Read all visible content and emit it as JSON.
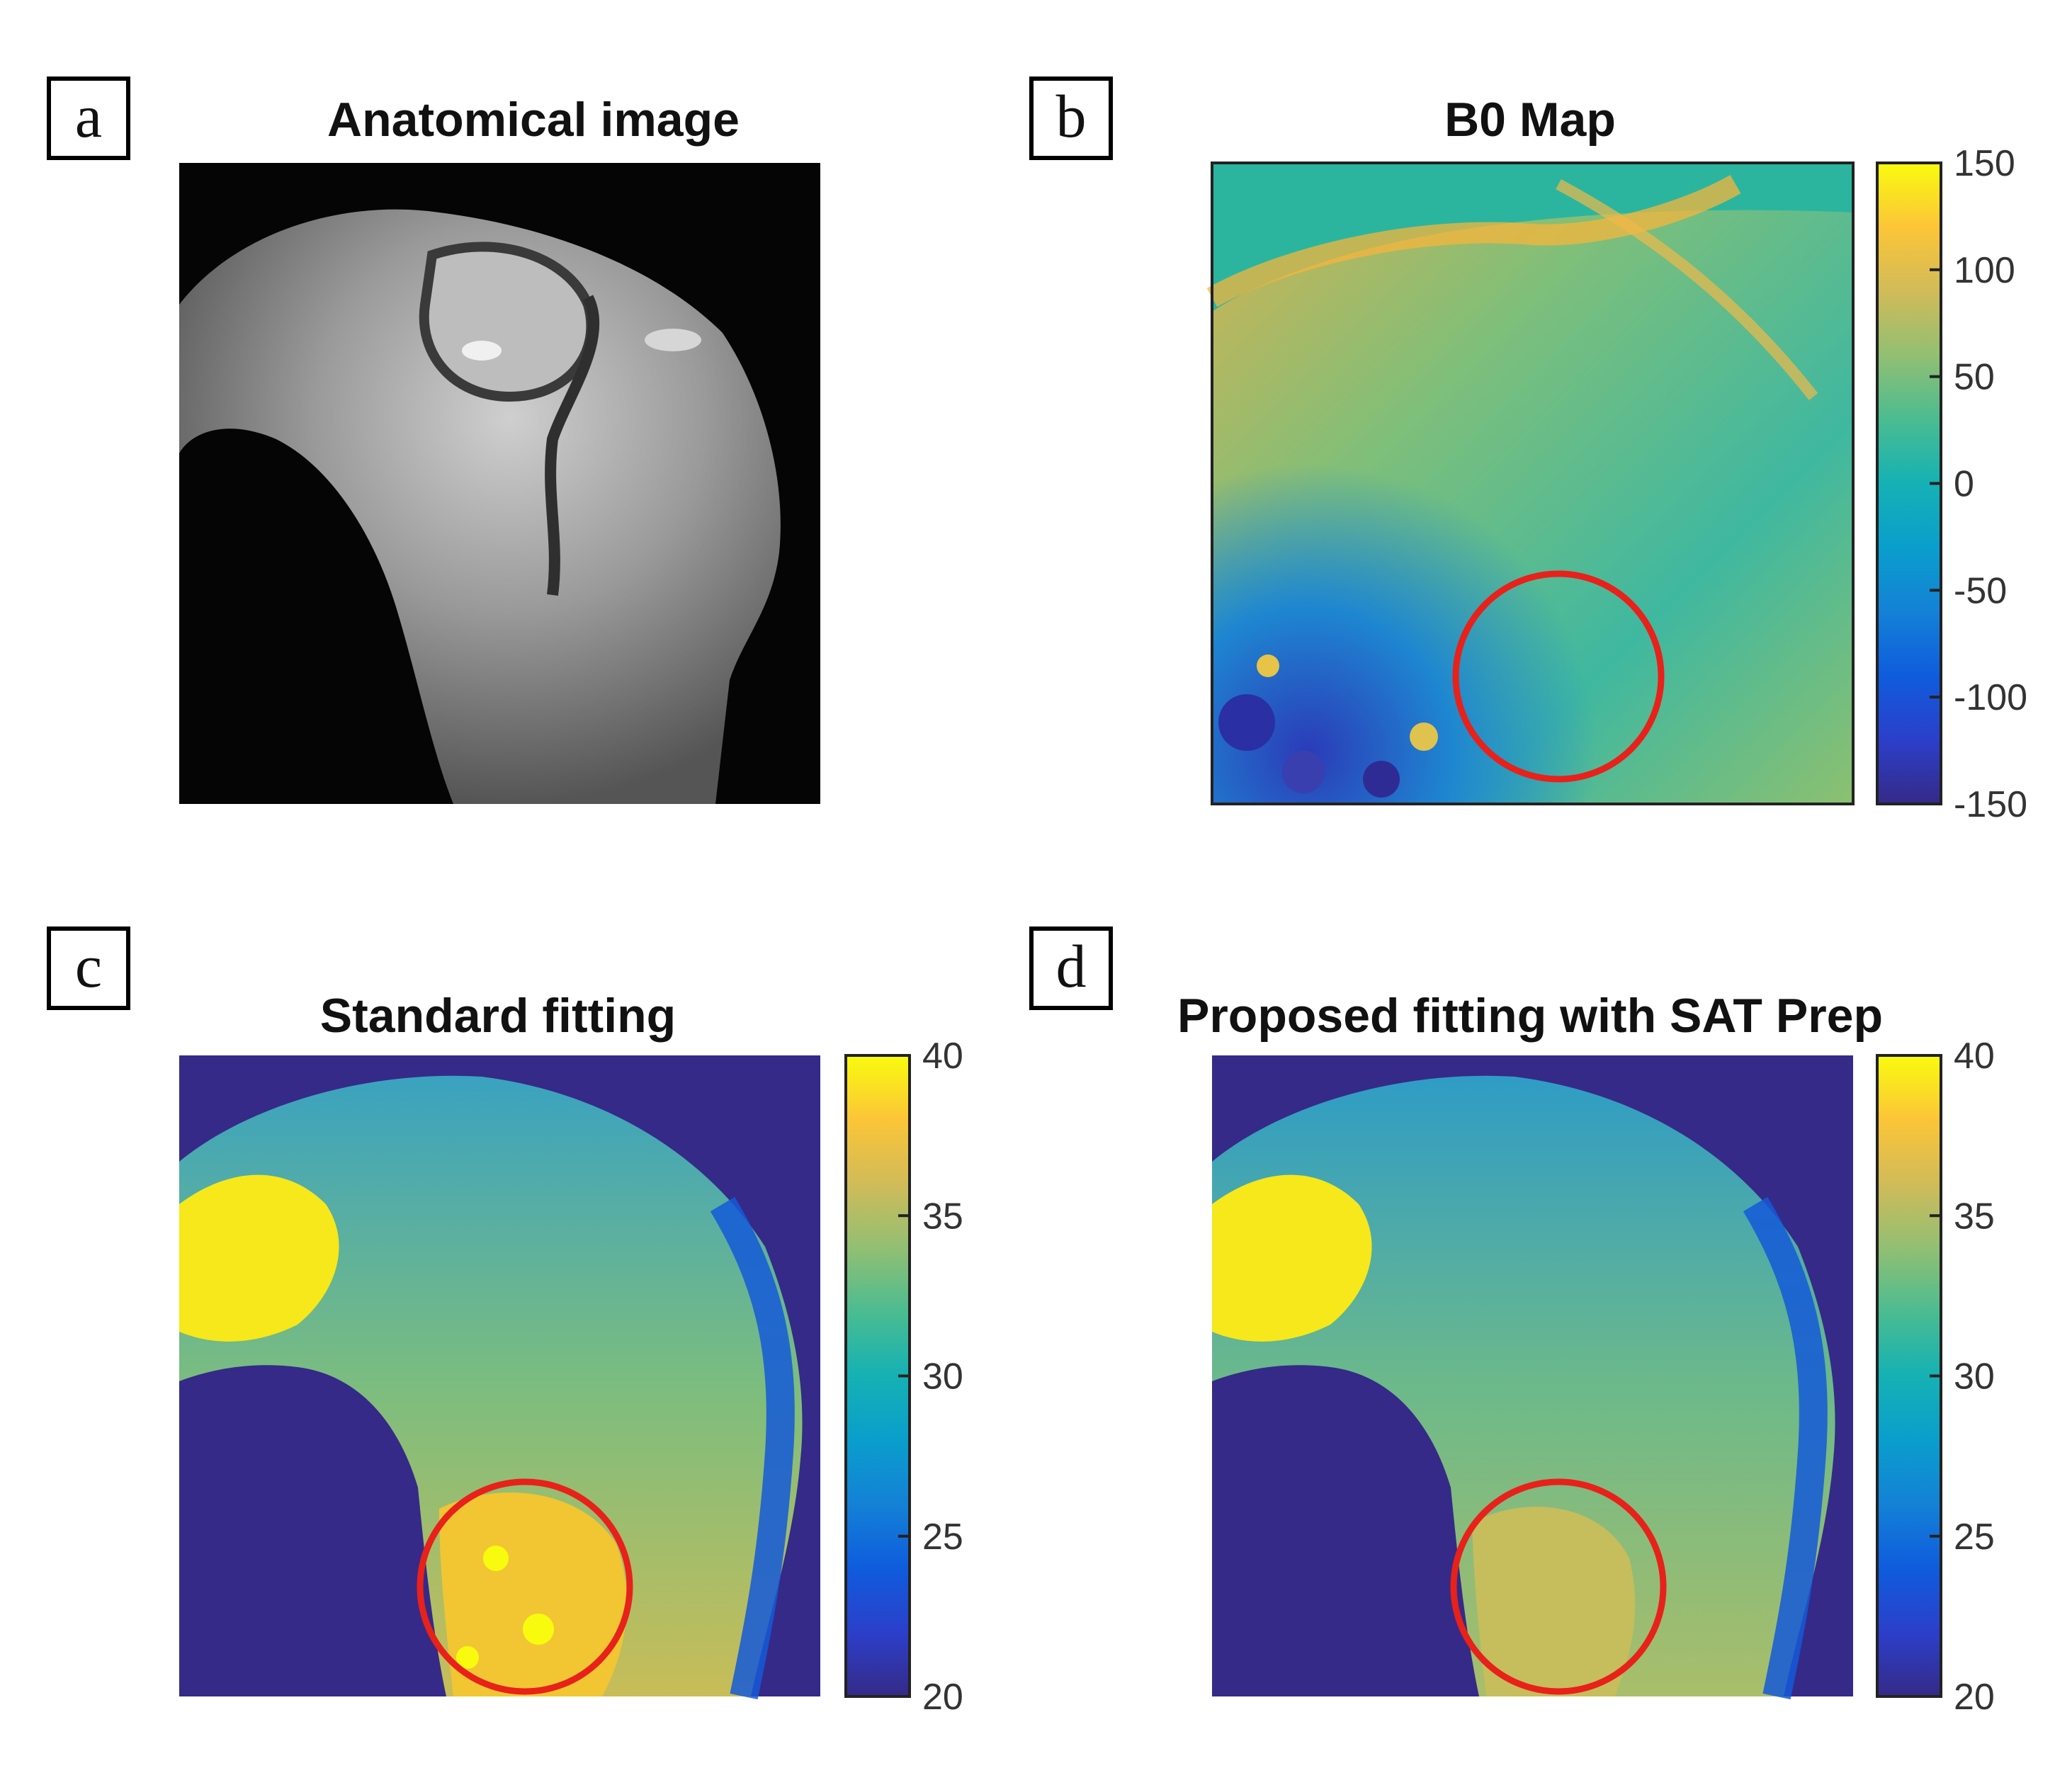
{
  "panels": [
    {
      "id": "a",
      "label": "a",
      "title": "Anatomical image"
    },
    {
      "id": "b",
      "label": "b",
      "title": "B0 Map",
      "colorbar_ticks": [
        "150",
        "100",
        "50",
        "0",
        "-50",
        "-100",
        "-150"
      ]
    },
    {
      "id": "c",
      "label": "c",
      "title": "Standard fitting",
      "colorbar_ticks": [
        "40",
        "35",
        "30",
        "25",
        "20"
      ]
    },
    {
      "id": "d",
      "label": "d",
      "title": "Proposed fitting with SAT Prep",
      "colorbar_ticks": [
        "40",
        "35",
        "30",
        "25",
        "20"
      ]
    }
  ],
  "colors": {
    "roi_circle": "#e8211a",
    "parula_low": "#352a87",
    "parula_mid": "#13b1b8",
    "parula_high": "#f9fb0e"
  }
}
